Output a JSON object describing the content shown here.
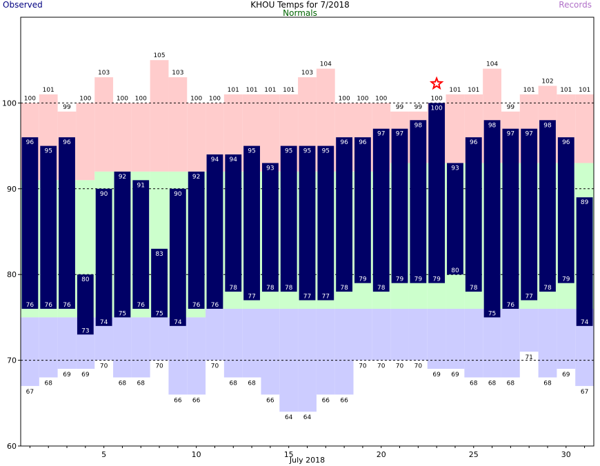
{
  "header": {
    "title": "KHOU Temps for 7/2018",
    "observed_label": "Observed",
    "normals_label": "Normals",
    "records_label": "Records"
  },
  "colors": {
    "observed": "#000066",
    "normal": "#ccffcc",
    "record_high": "#ffcccc",
    "record_low": "#ccccff",
    "record_marker": "#ff0000",
    "grid": "#000000"
  },
  "chart_data": {
    "type": "bar",
    "title": "KHOU Temps for 7/2018",
    "xlabel": "July 2018",
    "ylabel": "",
    "xlim": [
      1,
      31
    ],
    "ylim": [
      60,
      110
    ],
    "yticks": [
      60,
      70,
      80,
      90,
      100
    ],
    "xticks": [
      5,
      10,
      15,
      20,
      25,
      30
    ],
    "grid": "dashed horizontal at 70, 80, 90, 100",
    "days": [
      1,
      2,
      3,
      4,
      5,
      6,
      7,
      8,
      9,
      10,
      11,
      12,
      13,
      14,
      15,
      16,
      17,
      18,
      19,
      20,
      21,
      22,
      23,
      24,
      25,
      26,
      27,
      28,
      29,
      30,
      31
    ],
    "series": [
      {
        "name": "Observed high",
        "values": [
          96,
          95,
          96,
          80,
          90,
          92,
          91,
          83,
          90,
          92,
          94,
          94,
          95,
          93,
          95,
          95,
          95,
          96,
          96,
          97,
          97,
          98,
          100,
          93,
          96,
          98,
          97,
          97,
          98,
          96,
          89
        ]
      },
      {
        "name": "Observed low",
        "values": [
          76,
          76,
          76,
          73,
          74,
          75,
          76,
          75,
          74,
          76,
          76,
          78,
          77,
          78,
          78,
          77,
          77,
          78,
          79,
          78,
          79,
          79,
          79,
          80,
          78,
          75,
          76,
          77,
          78,
          79,
          74
        ]
      },
      {
        "name": "Normal high",
        "values": [
          91,
          91,
          91,
          91,
          92,
          92,
          92,
          92,
          92,
          92,
          92,
          92,
          92,
          92,
          92,
          92,
          92,
          92,
          92,
          92,
          93,
          93,
          93,
          93,
          93,
          93,
          93,
          93,
          93,
          93,
          93
        ]
      },
      {
        "name": "Normal low",
        "values": [
          75,
          75,
          75,
          75,
          75,
          75,
          75,
          75,
          75,
          75,
          76,
          76,
          76,
          76,
          76,
          76,
          76,
          76,
          76,
          76,
          76,
          76,
          76,
          76,
          76,
          76,
          76,
          76,
          76,
          76,
          76
        ]
      },
      {
        "name": "Record high",
        "values": [
          100,
          101,
          99,
          100,
          103,
          100,
          100,
          105,
          103,
          100,
          100,
          101,
          101,
          101,
          101,
          103,
          104,
          100,
          100,
          100,
          99,
          99,
          100,
          101,
          101,
          104,
          99,
          101,
          102,
          101,
          101
        ]
      },
      {
        "name": "Record low",
        "values": [
          67,
          68,
          69,
          69,
          70,
          68,
          68,
          70,
          66,
          66,
          70,
          68,
          68,
          66,
          64,
          64,
          66,
          66,
          70,
          70,
          70,
          70,
          69,
          69,
          68,
          68,
          68,
          71,
          68,
          69,
          67
        ]
      }
    ],
    "annotations": [
      {
        "type": "record-star",
        "day": 23,
        "value": 100
      }
    ]
  }
}
